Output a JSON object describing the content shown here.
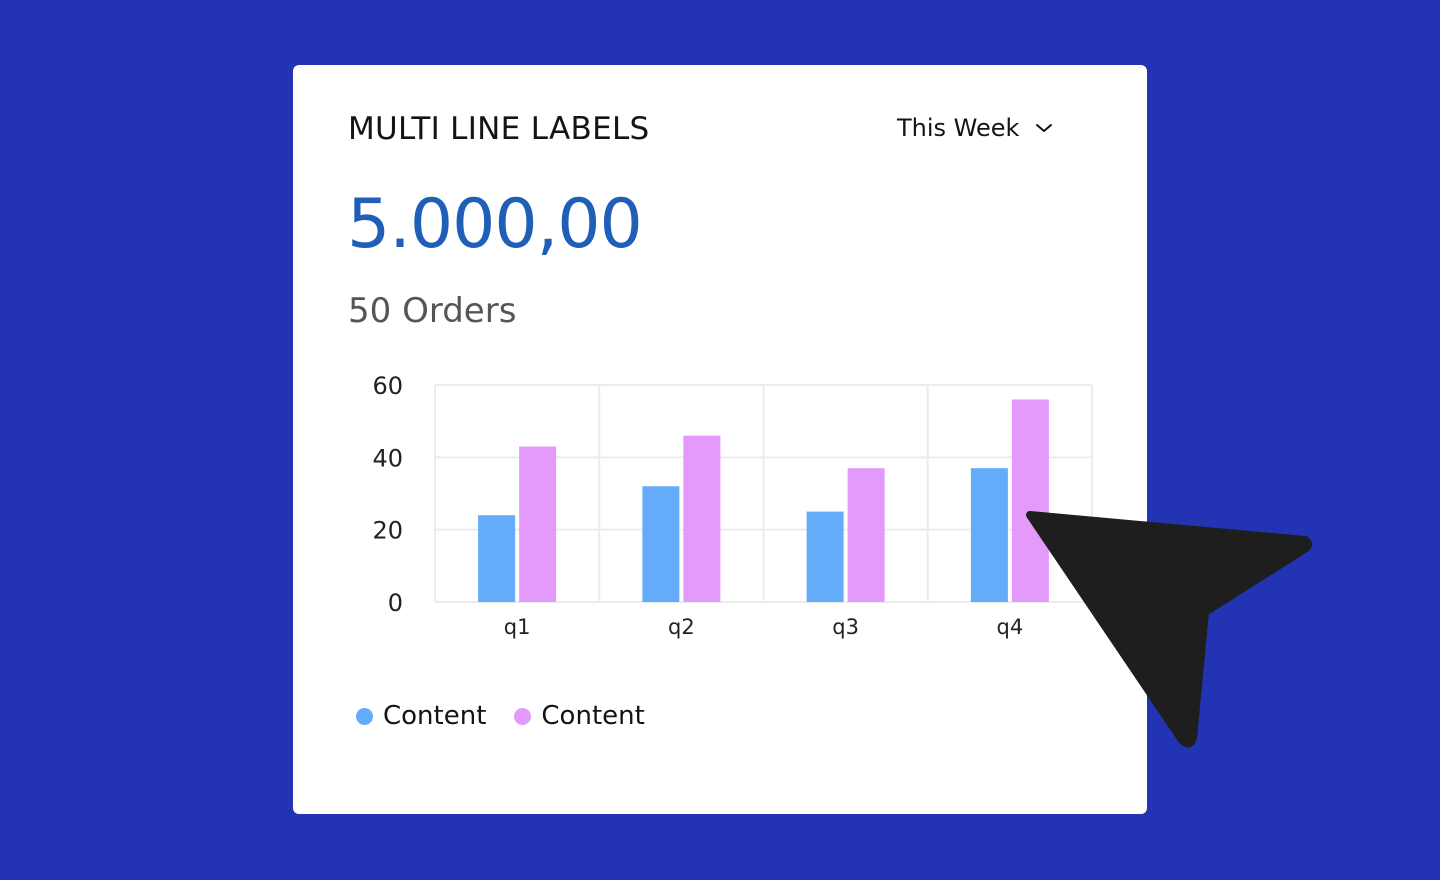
{
  "card": {
    "title": "MULTI LINE LABELS",
    "period_selected": "This Week",
    "value": "5.000,00",
    "orders": "50 Orders"
  },
  "colors": {
    "background": "#2233b3",
    "value": "#1f5fb8",
    "series_1": "#64abfa",
    "series_2": "#e49afa",
    "cursor": "#1e1e1e"
  },
  "icons": {
    "dropdown": "chevron-down-icon",
    "pointer": "cursor-arrow-icon"
  },
  "chart_data": {
    "type": "bar",
    "categories": [
      "q1",
      "q2",
      "q3",
      "q4"
    ],
    "series": [
      {
        "name": "Content",
        "values": [
          24,
          32,
          25,
          37
        ]
      },
      {
        "name": "Content",
        "values": [
          43,
          46,
          37,
          56
        ]
      }
    ],
    "ylim": [
      0,
      60
    ],
    "yticks": [
      0,
      20,
      40,
      60
    ],
    "grid": true,
    "legend": "bottom-left"
  }
}
